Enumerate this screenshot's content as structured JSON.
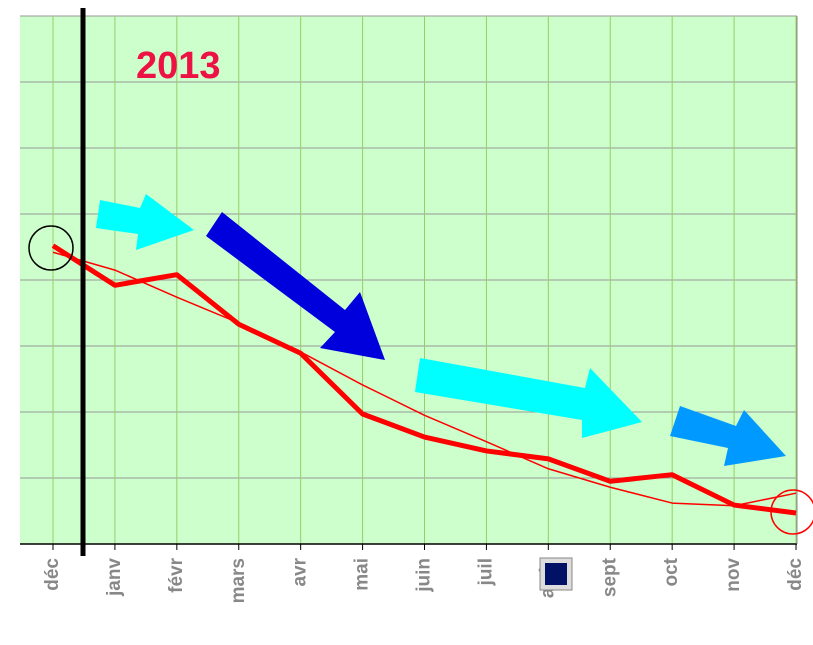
{
  "chart_data": {
    "type": "line",
    "annotations": [
      "2013"
    ],
    "categories": [
      "déc",
      "janv",
      "févr",
      "mars",
      "avr",
      "mai",
      "juin",
      "juil",
      "août",
      "sept",
      "oct",
      "nov",
      "déc"
    ],
    "series": [
      {
        "color": "#ff0000",
        "width": 5,
        "values": [
          4.52,
          3.92,
          4.08,
          3.33,
          2.89,
          1.97,
          1.62,
          1.41,
          1.29,
          0.95,
          1.05,
          0.59,
          0.47
        ]
      },
      {
        "color": "#ff0000",
        "width": 1.5,
        "values": [
          4.42,
          4.15,
          3.74,
          3.35,
          2.91,
          2.41,
          1.95,
          1.55,
          1.14,
          0.86,
          0.62,
          0.58,
          0.77
        ]
      }
    ],
    "ylim": [
      0,
      8
    ],
    "yticks": [
      0,
      1,
      2,
      3,
      4,
      5,
      6,
      7,
      8
    ],
    "grid": true,
    "background": "#ccffcc"
  }
}
